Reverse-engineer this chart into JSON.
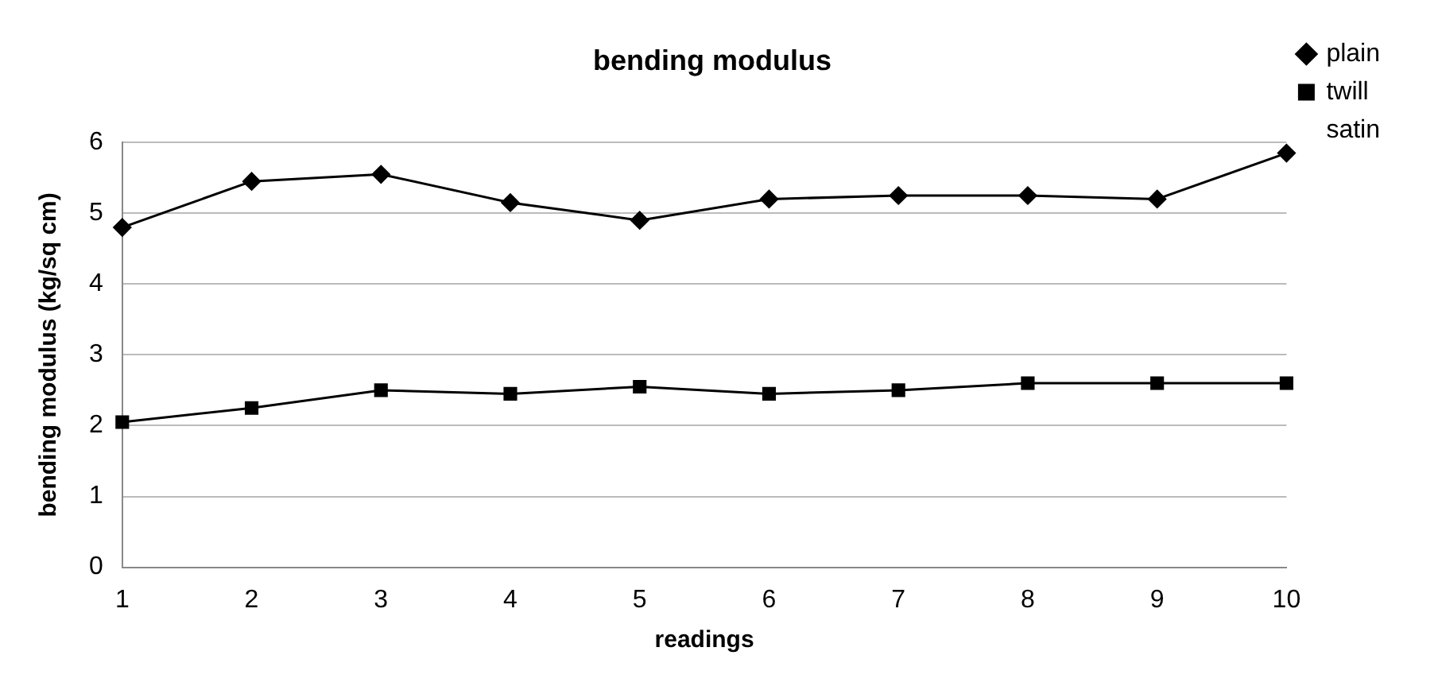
{
  "chart_data": {
    "type": "line",
    "title": "bending modulus",
    "xlabel": "readings",
    "ylabel": "bending modulus (kg/sq cm)",
    "categories": [
      "1",
      "2",
      "3",
      "4",
      "5",
      "6",
      "7",
      "8",
      "9",
      "10"
    ],
    "series": [
      {
        "name": "plain",
        "color": "#000000",
        "marker": "diamond",
        "values": [
          4.8,
          5.45,
          5.55,
          5.15,
          4.9,
          5.2,
          5.25,
          5.25,
          5.2,
          5.85
        ]
      },
      {
        "name": "twill",
        "color": "#000000",
        "marker": "square",
        "values": [
          2.05,
          2.25,
          2.5,
          2.45,
          2.55,
          2.45,
          2.5,
          2.6,
          2.6,
          2.6
        ]
      },
      {
        "name": "satin",
        "marker": "none",
        "values": [
          null,
          null,
          null,
          null,
          null,
          null,
          null,
          null,
          null,
          null
        ]
      }
    ],
    "ylim": [
      0,
      6
    ],
    "yticks": [
      0,
      1,
      2,
      3,
      4,
      5,
      6
    ],
    "grid": "y",
    "legend": "right",
    "line_style": "solid"
  }
}
